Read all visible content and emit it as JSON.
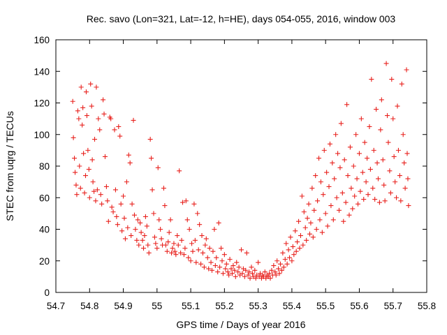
{
  "chart_data": {
    "type": "scatter",
    "title": "Rec. savo (Lon=321, Lat=-12, h=HE), days 054-055, 2016, window 003",
    "xlabel": "GPS time / Days of year 2016",
    "ylabel": "STEC from uqrg / TECUs",
    "xlim": [
      54.7,
      55.8
    ],
    "ylim": [
      0,
      160
    ],
    "xticks": [
      "54.7",
      "54.8",
      "54.9",
      "55",
      "55.1",
      "55.2",
      "55.3",
      "55.4",
      "55.5",
      "55.6",
      "55.7",
      "55.8"
    ],
    "yticks": [
      "0",
      "20",
      "40",
      "60",
      "80",
      "100",
      "120",
      "140",
      "160"
    ],
    "grid": false,
    "legend": "none",
    "marker": "+",
    "marker_color": "#e8201c",
    "series": [
      {
        "points": [
          [
            54.75,
            121
          ],
          [
            54.752,
            98
          ],
          [
            54.755,
            85
          ],
          [
            54.757,
            76
          ],
          [
            54.76,
            68
          ],
          [
            54.762,
            62
          ],
          [
            54.765,
            115
          ],
          [
            54.768,
            110
          ],
          [
            54.77,
            80
          ],
          [
            54.773,
            66
          ],
          [
            54.775,
            130
          ],
          [
            54.778,
            106
          ],
          [
            54.78,
            117
          ],
          [
            54.782,
            88
          ],
          [
            54.785,
            63
          ],
          [
            54.788,
            74
          ],
          [
            54.79,
            127
          ],
          [
            54.792,
            112
          ],
          [
            54.795,
            90
          ],
          [
            54.798,
            78
          ],
          [
            54.8,
            60
          ],
          [
            54.803,
            132
          ],
          [
            54.806,
            118
          ],
          [
            54.808,
            84
          ],
          [
            54.81,
            70
          ],
          [
            54.813,
            64
          ],
          [
            54.815,
            97
          ],
          [
            54.818,
            58
          ],
          [
            54.82,
            130
          ],
          [
            54.823,
            65
          ],
          [
            54.826,
            110
          ],
          [
            54.83,
            103
          ],
          [
            54.833,
            62
          ],
          [
            54.836,
            56
          ],
          [
            54.84,
            122
          ],
          [
            54.843,
            113
          ],
          [
            54.846,
            86
          ],
          [
            54.85,
            67
          ],
          [
            54.853,
            58
          ],
          [
            54.856,
            45
          ],
          [
            54.86,
            111
          ],
          [
            54.863,
            110
          ],
          [
            54.866,
            54
          ],
          [
            54.87,
            51
          ],
          [
            54.874,
            103
          ],
          [
            54.877,
            65
          ],
          [
            54.88,
            48
          ],
          [
            54.883,
            43
          ],
          [
            54.886,
            105
          ],
          [
            54.89,
            99
          ],
          [
            54.893,
            56
          ],
          [
            54.896,
            39
          ],
          [
            54.9,
            61
          ],
          [
            54.903,
            47
          ],
          [
            54.906,
            34
          ],
          [
            54.91,
            70
          ],
          [
            54.913,
            41
          ],
          [
            54.916,
            87
          ],
          [
            54.92,
            82
          ],
          [
            54.923,
            36
          ],
          [
            54.926,
            56
          ],
          [
            54.93,
            109
          ],
          [
            54.933,
            49
          ],
          [
            54.936,
            40
          ],
          [
            54.94,
            33
          ],
          [
            54.943,
            46
          ],
          [
            54.946,
            30
          ],
          [
            54.95,
            44
          ],
          [
            54.953,
            38
          ],
          [
            54.957,
            33
          ],
          [
            54.96,
            28
          ],
          [
            54.963,
            36
          ],
          [
            54.966,
            48
          ],
          [
            54.97,
            42
          ],
          [
            54.973,
            30
          ],
          [
            54.976,
            25
          ],
          [
            54.98,
            97
          ],
          [
            54.983,
            85
          ],
          [
            54.986,
            65
          ],
          [
            54.99,
            50
          ],
          [
            54.993,
            35
          ],
          [
            54.996,
            31
          ],
          [
            55.0,
            28
          ],
          [
            55.003,
            79
          ],
          [
            55.006,
            46
          ],
          [
            55.01,
            40
          ],
          [
            55.013,
            34
          ],
          [
            55.016,
            30
          ],
          [
            55.02,
            66
          ],
          [
            55.023,
            55
          ],
          [
            55.026,
            30
          ],
          [
            55.03,
            26
          ],
          [
            55.033,
            32
          ],
          [
            55.036,
            38
          ],
          [
            55.04,
            46
          ],
          [
            55.043,
            25
          ],
          [
            55.046,
            28
          ],
          [
            55.05,
            31
          ],
          [
            55.053,
            26
          ],
          [
            55.056,
            24
          ],
          [
            55.06,
            36
          ],
          [
            55.063,
            30
          ],
          [
            55.066,
            77
          ],
          [
            55.07,
            25
          ],
          [
            55.073,
            33
          ],
          [
            55.076,
            57
          ],
          [
            55.08,
            24
          ],
          [
            55.083,
            28
          ],
          [
            55.086,
            58
          ],
          [
            55.09,
            46
          ],
          [
            55.093,
            22
          ],
          [
            55.096,
            40
          ],
          [
            55.1,
            20
          ],
          [
            55.103,
            31
          ],
          [
            55.106,
            26
          ],
          [
            55.11,
            56
          ],
          [
            55.113,
            33
          ],
          [
            55.116,
            19
          ],
          [
            55.12,
            50
          ],
          [
            55.123,
            27
          ],
          [
            55.126,
            43
          ],
          [
            55.13,
            18
          ],
          [
            55.133,
            36
          ],
          [
            55.136,
            25
          ],
          [
            55.14,
            16
          ],
          [
            55.143,
            30
          ],
          [
            55.146,
            34
          ],
          [
            55.15,
            22
          ],
          [
            55.153,
            15
          ],
          [
            55.156,
            28
          ],
          [
            55.16,
            19
          ],
          [
            55.163,
            14
          ],
          [
            55.166,
            26
          ],
          [
            55.17,
            40
          ],
          [
            55.173,
            17
          ],
          [
            55.176,
            22
          ],
          [
            55.18,
            13
          ],
          [
            55.183,
            44
          ],
          [
            55.186,
            16
          ],
          [
            55.19,
            28
          ],
          [
            55.193,
            20
          ],
          [
            55.196,
            12
          ],
          [
            55.2,
            24
          ],
          [
            55.203,
            15
          ],
          [
            55.206,
            18
          ],
          [
            55.21,
            13
          ],
          [
            55.213,
            11
          ],
          [
            55.216,
            21
          ],
          [
            55.22,
            15
          ],
          [
            55.223,
            12
          ],
          [
            55.226,
            17
          ],
          [
            55.23,
            14
          ],
          [
            55.233,
            10
          ],
          [
            55.236,
            19
          ],
          [
            55.24,
            13
          ],
          [
            55.243,
            16
          ],
          [
            55.246,
            11
          ],
          [
            55.25,
            27
          ],
          [
            55.253,
            12
          ],
          [
            55.256,
            15
          ],
          [
            55.26,
            10
          ],
          [
            55.263,
            14
          ],
          [
            55.266,
            25
          ],
          [
            55.27,
            11
          ],
          [
            55.273,
            13
          ],
          [
            55.276,
            9
          ],
          [
            55.28,
            16
          ],
          [
            55.283,
            12
          ],
          [
            55.286,
            10
          ],
          [
            55.29,
            14
          ],
          [
            55.293,
            9
          ],
          [
            55.296,
            11
          ],
          [
            55.3,
            19
          ],
          [
            55.303,
            10
          ],
          [
            55.306,
            12
          ],
          [
            55.31,
            9
          ],
          [
            55.313,
            11
          ],
          [
            55.316,
            10
          ],
          [
            55.32,
            13
          ],
          [
            55.323,
            9
          ],
          [
            55.326,
            11
          ],
          [
            55.33,
            10
          ],
          [
            55.333,
            12
          ],
          [
            55.336,
            9
          ],
          [
            55.34,
            14
          ],
          [
            55.343,
            11
          ],
          [
            55.346,
            17
          ],
          [
            55.35,
            13
          ],
          [
            55.353,
            11
          ],
          [
            55.356,
            20
          ],
          [
            55.36,
            15
          ],
          [
            55.363,
            12
          ],
          [
            55.366,
            18
          ],
          [
            55.37,
            14
          ],
          [
            55.373,
            25
          ],
          [
            55.376,
            16
          ],
          [
            55.38,
            21
          ],
          [
            55.383,
            31
          ],
          [
            55.386,
            18
          ],
          [
            55.39,
            27
          ],
          [
            55.393,
            22
          ],
          [
            55.396,
            35
          ],
          [
            55.4,
            20
          ],
          [
            55.403,
            29
          ],
          [
            55.406,
            24
          ],
          [
            55.41,
            39
          ],
          [
            55.413,
            26
          ],
          [
            55.416,
            32
          ],
          [
            55.42,
            45
          ],
          [
            55.423,
            28
          ],
          [
            55.426,
            36
          ],
          [
            55.43,
            61
          ],
          [
            55.433,
            30
          ],
          [
            55.436,
            51
          ],
          [
            55.44,
            41
          ],
          [
            55.443,
            33
          ],
          [
            55.446,
            47
          ],
          [
            55.45,
            56
          ],
          [
            55.453,
            37
          ],
          [
            55.456,
            44
          ],
          [
            55.46,
            66
          ],
          [
            55.463,
            35
          ],
          [
            55.466,
            52
          ],
          [
            55.47,
            74
          ],
          [
            55.473,
            40
          ],
          [
            55.476,
            58
          ],
          [
            55.48,
            85
          ],
          [
            55.483,
            46
          ],
          [
            55.486,
            70
          ],
          [
            55.49,
            38
          ],
          [
            55.493,
            62
          ],
          [
            55.496,
            90
          ],
          [
            55.5,
            50
          ],
          [
            55.503,
            76
          ],
          [
            55.506,
            42
          ],
          [
            55.51,
            67
          ],
          [
            55.513,
            94
          ],
          [
            55.516,
            55
          ],
          [
            55.52,
            82
          ],
          [
            55.523,
            46
          ],
          [
            55.526,
            72
          ],
          [
            55.53,
            100
          ],
          [
            55.533,
            60
          ],
          [
            55.536,
            88
          ],
          [
            55.54,
            52
          ],
          [
            55.543,
            79
          ],
          [
            55.546,
            107
          ],
          [
            55.55,
            63
          ],
          [
            55.553,
            45
          ],
          [
            55.556,
            84
          ],
          [
            55.56,
            57
          ],
          [
            55.563,
            119
          ],
          [
            55.566,
            74
          ],
          [
            55.57,
            49
          ],
          [
            55.573,
            92
          ],
          [
            55.576,
            66
          ],
          [
            55.58,
            53
          ],
          [
            55.583,
            80
          ],
          [
            55.586,
            61
          ],
          [
            55.59,
            100
          ],
          [
            55.593,
            72
          ],
          [
            55.596,
            56
          ],
          [
            55.6,
            88
          ],
          [
            55.603,
            64
          ],
          [
            55.606,
            110
          ],
          [
            55.61,
            76
          ],
          [
            55.613,
            59
          ],
          [
            55.616,
            95
          ],
          [
            55.62,
            70
          ],
          [
            55.623,
            85
          ],
          [
            55.626,
            62
          ],
          [
            55.63,
            105
          ],
          [
            55.633,
            78
          ],
          [
            55.636,
            135
          ],
          [
            55.64,
            66
          ],
          [
            55.643,
            90
          ],
          [
            55.646,
            59
          ],
          [
            55.65,
            116
          ],
          [
            55.653,
            82
          ],
          [
            55.656,
            72
          ],
          [
            55.66,
            57
          ],
          [
            55.663,
            103
          ],
          [
            55.666,
            122
          ],
          [
            55.67,
            84
          ],
          [
            55.673,
            68
          ],
          [
            55.676,
            58
          ],
          [
            55.68,
            145
          ],
          [
            55.683,
            112
          ],
          [
            55.686,
            95
          ],
          [
            55.69,
            77
          ],
          [
            55.693,
            63
          ],
          [
            55.696,
            135
          ],
          [
            55.7,
            110
          ],
          [
            55.703,
            86
          ],
          [
            55.706,
            70
          ],
          [
            55.71,
            60
          ],
          [
            55.713,
            118
          ],
          [
            55.716,
            90
          ],
          [
            55.72,
            74
          ],
          [
            55.723,
            58
          ],
          [
            55.726,
            132
          ],
          [
            55.73,
            100
          ],
          [
            55.733,
            82
          ],
          [
            55.736,
            66
          ],
          [
            55.74,
            141
          ],
          [
            55.742,
            88
          ],
          [
            55.744,
            72
          ],
          [
            55.746,
            55
          ]
        ]
      }
    ]
  }
}
